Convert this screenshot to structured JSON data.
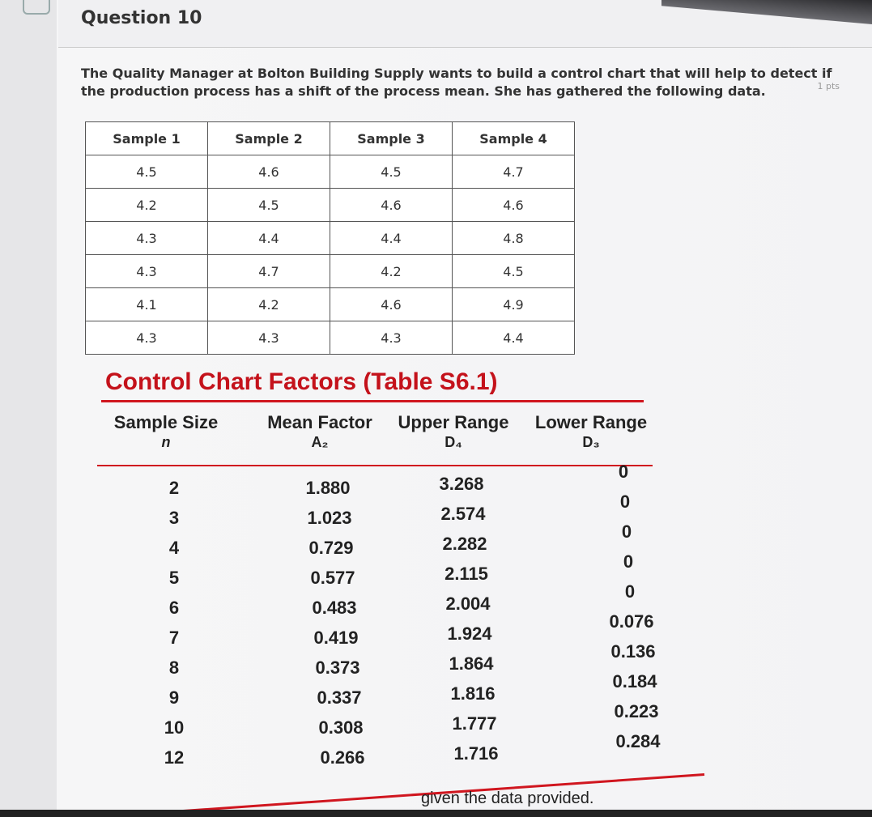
{
  "header": {
    "title": "Question 10",
    "points": "1 pts"
  },
  "question": {
    "text": "The Quality Manager at Bolton Building Supply wants to build a control chart that will help to detect if the production process has a shift of the process mean. She has gathered the following data."
  },
  "data_table": {
    "columns": [
      "Sample 1",
      "Sample 2",
      "Sample 3",
      "Sample 4"
    ],
    "rows": [
      [
        "4.5",
        "4.6",
        "4.5",
        "4.7"
      ],
      [
        "4.2",
        "4.5",
        "4.6",
        "4.6"
      ],
      [
        "4.3",
        "4.4",
        "4.4",
        "4.8"
      ],
      [
        "4.3",
        "4.7",
        "4.2",
        "4.5"
      ],
      [
        "4.1",
        "4.2",
        "4.6",
        "4.9"
      ],
      [
        "4.3",
        "4.3",
        "4.3",
        "4.4"
      ]
    ]
  },
  "factors": {
    "title": "Control Chart Factors (Table S6.1)",
    "headers": [
      {
        "label": "Sample Size",
        "symbol": "n"
      },
      {
        "label": "Mean Factor",
        "symbol": "A₂"
      },
      {
        "label": "Upper Range",
        "symbol": "D₄"
      },
      {
        "label": "Lower Range",
        "symbol": "D₃"
      }
    ],
    "rows": [
      [
        "2",
        "1.880",
        "3.268",
        "0"
      ],
      [
        "3",
        "1.023",
        "2.574",
        "0"
      ],
      [
        "4",
        "0.729",
        "2.282",
        "0"
      ],
      [
        "5",
        "0.577",
        "2.115",
        "0"
      ],
      [
        "6",
        "0.483",
        "2.004",
        "0"
      ],
      [
        "7",
        "0.419",
        "1.924",
        "0.076"
      ],
      [
        "8",
        "0.373",
        "1.864",
        "0.136"
      ],
      [
        "9",
        "0.337",
        "1.816",
        "0.184"
      ],
      [
        "10",
        "0.308",
        "1.777",
        "0.223"
      ],
      [
        "12",
        "0.266",
        "1.716",
        "0.284"
      ]
    ]
  },
  "footer": {
    "text": "given the data provided."
  }
}
